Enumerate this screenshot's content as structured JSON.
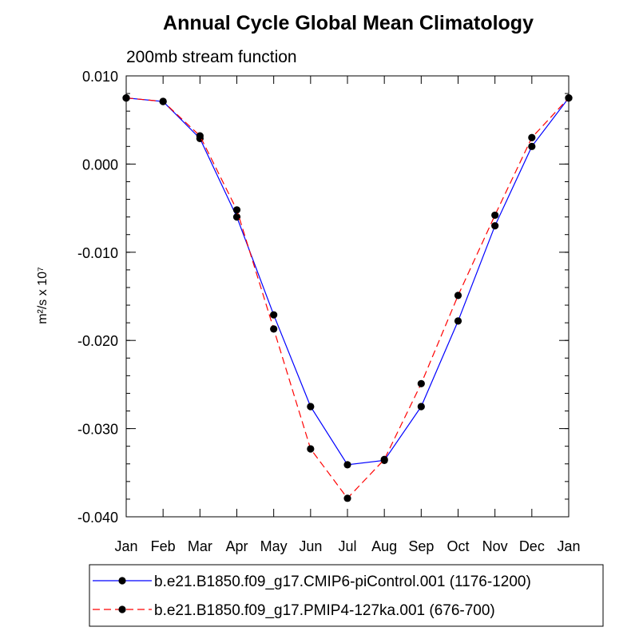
{
  "chart_data": {
    "type": "line",
    "title": "Annual Cycle Global Mean Climatology",
    "subtitle": "200mb stream function",
    "ylabel": "m²/s x 10⁷",
    "xlabel": "",
    "categories": [
      "Jan",
      "Feb",
      "Mar",
      "Apr",
      "May",
      "Jun",
      "Jul",
      "Aug",
      "Sep",
      "Oct",
      "Nov",
      "Dec",
      "Jan"
    ],
    "ylim": [
      -0.04,
      0.01
    ],
    "yticks": [
      0.01,
      0.0,
      -0.01,
      -0.02,
      -0.03,
      -0.04
    ],
    "ytick_labels": [
      "0.010",
      "0.000",
      "-0.010",
      "-0.020",
      "-0.030",
      "-0.040"
    ],
    "grid": false,
    "legend_position": "bottom",
    "series": [
      {
        "name": "b.e21.B1850.f09_g17.CMIP6-piControl.001 (1176-1200)",
        "color": "#0000ff",
        "style": "solid",
        "values": [
          0.0075,
          0.0071,
          0.0029,
          -0.006,
          -0.0171,
          -0.0275,
          -0.0341,
          -0.0336,
          -0.0275,
          -0.0178,
          -0.007,
          0.002,
          0.0075
        ]
      },
      {
        "name": "b.e21.B1850.f09_g17.PMIP4-127ka.001 (676-700)",
        "color": "#ff0000",
        "style": "dashed",
        "values": [
          0.0075,
          0.0071,
          0.0032,
          -0.0052,
          -0.0187,
          -0.0323,
          -0.0379,
          -0.0335,
          -0.0249,
          -0.0149,
          -0.0058,
          0.003,
          0.0075
        ]
      }
    ]
  }
}
